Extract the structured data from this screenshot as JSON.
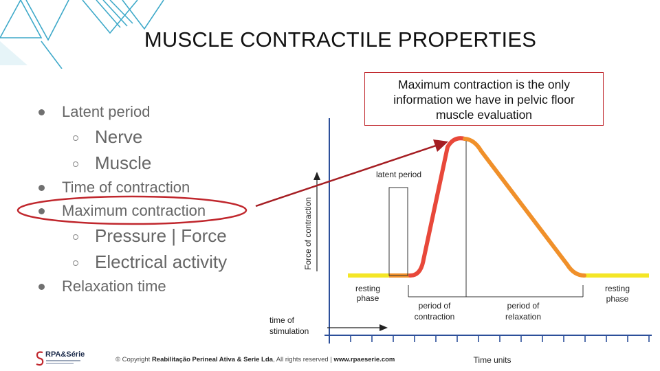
{
  "slide": {
    "title": "MUSCLE CONTRACTILE PROPERTIES",
    "bullets": [
      {
        "level": 1,
        "text": "Latent period"
      },
      {
        "level": 2,
        "text": "Nerve"
      },
      {
        "level": 2,
        "text": "Muscle"
      },
      {
        "level": 1,
        "text": "Time of contraction"
      },
      {
        "level": 1,
        "text": "Maximum contraction",
        "highlighted": true
      },
      {
        "level": 2,
        "text": "Pressure | Force"
      },
      {
        "level": 2,
        "text": "Electrical activity"
      },
      {
        "level": 1,
        "text": "Relaxation time"
      }
    ],
    "callout": {
      "lines": [
        "Maximum contraction is the only",
        "information we have in pelvic floor",
        "muscle evaluation"
      ]
    },
    "diagram": {
      "y_axis_label": "Force of contraction",
      "x_axis_label": "Time units",
      "labels": {
        "latent_period": "latent period",
        "resting_phase_left": [
          "resting",
          "phase"
        ],
        "resting_phase_right": [
          "resting",
          "phase"
        ],
        "period_of_contraction": [
          "period of",
          "contraction"
        ],
        "period_of_relaxation": [
          "period of",
          "relaxation"
        ],
        "time_of_stimulation": [
          "time of",
          "stimulation"
        ]
      }
    },
    "footer": {
      "prefix": "© Copyright ",
      "company": "Reabilitação Perineal Ativa & Serie Lda",
      "middle": ", All rights reserved | ",
      "website": "www.rpaeserie.com"
    },
    "logo": {
      "text": "RPA&Série"
    },
    "colors": {
      "accent_red": "#c0272d",
      "curve_red": "#e8483a",
      "curve_orange": "#f0902a",
      "resting_yellow": "#f4e626",
      "axis_blue": "#2c4f9a",
      "deco_cyan": "#3ea9c9"
    }
  }
}
